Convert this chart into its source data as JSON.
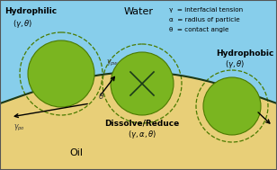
{
  "bg_water": "#87CEEB",
  "oil_color": "#E8CF78",
  "circle_green_fill": "#7AB520",
  "circle_green_edge": "#4A7A00",
  "dashed_circle_edge": "#4A7A00",
  "interface_color": "#1A3A1A",
  "figsize": [
    3.08,
    1.89
  ],
  "dpi": 100,
  "legend_line1": "γ  = interfacial tension",
  "legend_line2": "α  = radius of particle",
  "legend_line3": "θ  = contact angle"
}
